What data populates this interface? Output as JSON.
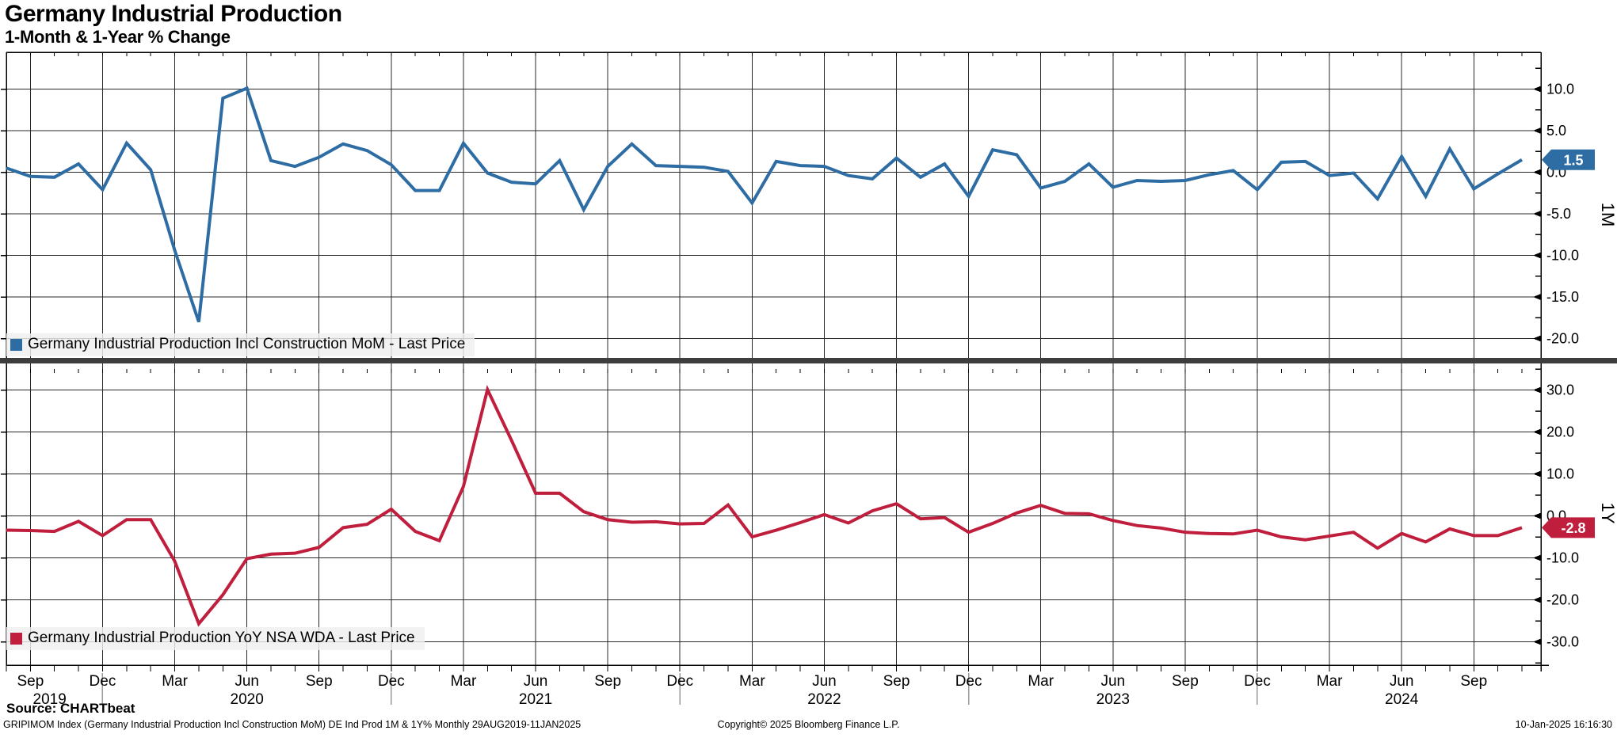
{
  "header": {
    "title": "Germany Industrial Production",
    "subtitle": "1-Month & 1-Year % Change"
  },
  "source": {
    "label": "Source: CHARTbeat"
  },
  "footer": {
    "left": "GRIPIMOM Index (Germany Industrial Production Incl Construction MoM) DE Ind Prod 1M & 1Y%  Monthly 29AUG2019-11JAN2025",
    "center": "Copyright© 2025 Bloomberg Finance L.P.",
    "right": "10-Jan-2025 16:16:30"
  },
  "chart_data": {
    "type": "line",
    "frequency": "monthly",
    "range_start": "Aug 2019",
    "range_end": "Nov 2024",
    "grid": true,
    "x_axis": {
      "month_ticks": [
        "Sep",
        "Dec",
        "Mar",
        "Jun",
        "Sep",
        "Dec",
        "Mar",
        "Jun",
        "Sep",
        "Dec",
        "Mar",
        "Jun",
        "Sep",
        "Dec",
        "Mar",
        "Jun",
        "Sep",
        "Dec",
        "Mar",
        "Jun",
        "Sep"
      ],
      "first_tick_month_index": 1,
      "tick_step": 3,
      "year_labels": [
        {
          "label": "2019",
          "month_index": 1.8
        },
        {
          "label": "2020",
          "month_index": 10
        },
        {
          "label": "2021",
          "month_index": 22
        },
        {
          "label": "2022",
          "month_index": 34
        },
        {
          "label": "2023",
          "month_index": 46
        },
        {
          "label": "2024",
          "month_index": 58
        }
      ]
    },
    "panels": [
      {
        "id": "1M",
        "axis_label": "1M",
        "legend": "Germany Industrial Production Incl Construction MoM - Last Price",
        "color": "#2e6da4",
        "last_value_label": "1.5",
        "ylim": [
          -22.5,
          14.4
        ],
        "yticks": [
          10,
          5,
          0,
          -5,
          -10,
          -15,
          -20
        ],
        "ytick_labels": [
          "10.0",
          "5.0",
          "0.0",
          "-5.0",
          "-10.0",
          "-15.0",
          "-20.0"
        ],
        "values": [
          0.5,
          -0.5,
          -0.6,
          1.0,
          -2.1,
          3.5,
          0.3,
          -9.4,
          -18.0,
          8.9,
          10.1,
          1.4,
          0.7,
          1.8,
          3.4,
          2.6,
          0.9,
          -2.2,
          -2.2,
          3.5,
          -0.1,
          -1.2,
          -1.4,
          1.4,
          -4.5,
          0.7,
          3.4,
          0.8,
          0.7,
          0.6,
          0.1,
          -3.7,
          1.3,
          0.8,
          0.7,
          -0.4,
          -0.8,
          1.7,
          -0.6,
          1.0,
          -2.9,
          2.7,
          2.1,
          -1.9,
          -1.1,
          1.0,
          -1.8,
          -1.0,
          -1.1,
          -1.0,
          -0.3,
          0.2,
          -2.1,
          1.2,
          1.3,
          -0.4,
          -0.1,
          -3.2,
          1.9,
          -2.9,
          2.8,
          -2.0,
          -0.2,
          1.5
        ]
      },
      {
        "id": "1Y",
        "axis_label": "1Y",
        "legend": "Germany Industrial Production YoY NSA WDA - Last Price",
        "color": "#bf1e3c",
        "last_value_label": "-2.8",
        "ylim": [
          -35.5,
          36.3
        ],
        "yticks": [
          30,
          20,
          10,
          0,
          -10,
          -20,
          -30
        ],
        "ytick_labels": [
          "30.0",
          "20.0",
          "10.0",
          "0.0",
          "-10.0",
          "-20.0",
          "-30.0"
        ],
        "values": [
          -3.4,
          -3.5,
          -3.7,
          -1.3,
          -4.7,
          -0.9,
          -0.9,
          -10.8,
          -25.7,
          -18.8,
          -10.2,
          -9.1,
          -8.9,
          -7.5,
          -2.8,
          -2.0,
          1.6,
          -3.7,
          -5.9,
          7.0,
          30.1,
          18.0,
          5.4,
          5.4,
          1.0,
          -0.9,
          -1.5,
          -1.4,
          -1.9,
          -1.8,
          2.6,
          -5.0,
          -3.4,
          -1.6,
          0.3,
          -1.7,
          1.2,
          2.9,
          -0.7,
          -0.4,
          -3.9,
          -1.8,
          0.7,
          2.5,
          0.6,
          0.5,
          -1.1,
          -2.3,
          -2.9,
          -3.9,
          -4.2,
          -4.3,
          -3.4,
          -5.0,
          -5.7,
          -4.8,
          -3.9,
          -7.7,
          -4.2,
          -6.2,
          -3.1,
          -4.7,
          -4.7,
          -2.8
        ]
      }
    ]
  }
}
